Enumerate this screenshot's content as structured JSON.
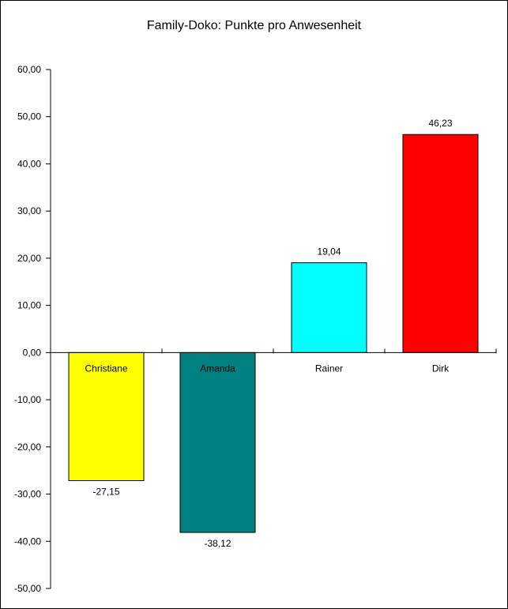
{
  "chart_data": {
    "type": "bar",
    "title": "Family-Doko: Punkte pro Anwesenheit",
    "categories": [
      "Christiane",
      "Amanda",
      "Rainer",
      "Dirk"
    ],
    "values": [
      -27.15,
      -38.12,
      19.04,
      46.23
    ],
    "value_labels": [
      "-27,15",
      "-38,12",
      "19,04",
      "46,23"
    ],
    "colors": [
      "#ffff00",
      "#008080",
      "#00ffff",
      "#ff0000"
    ],
    "ylim": [
      -50,
      60
    ],
    "yticks": [
      60,
      50,
      40,
      30,
      20,
      10,
      0,
      -10,
      -20,
      -30,
      -40,
      -50
    ],
    "ytick_labels": [
      "60,00",
      "50,00",
      "40,00",
      "30,00",
      "20,00",
      "10,00",
      "0,00",
      "-10,00",
      "-20,00",
      "-30,00",
      "-40,00",
      "-50,00"
    ],
    "grid": false,
    "legend": false,
    "xlabel": "",
    "ylabel": ""
  }
}
